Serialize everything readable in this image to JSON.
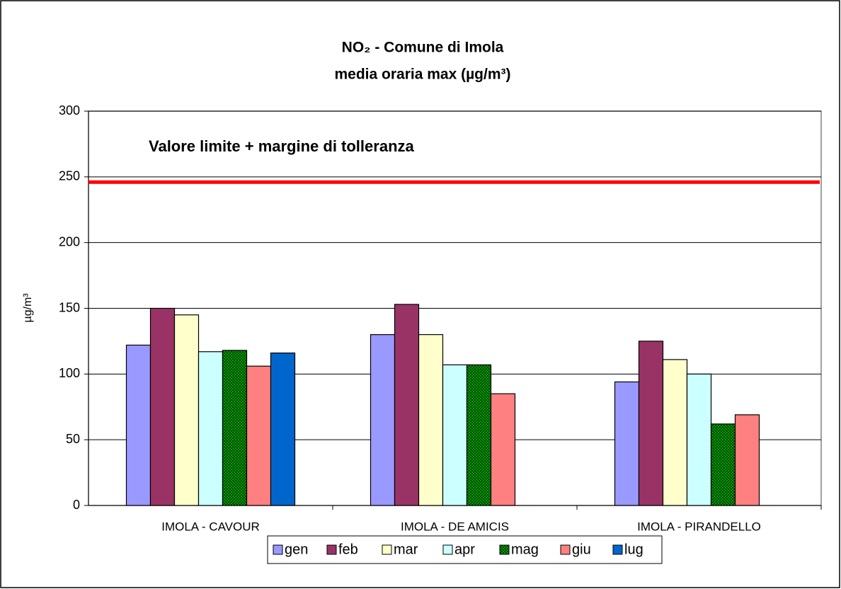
{
  "chart_data": {
    "type": "bar",
    "title": "NO₂ - Comune di Imola",
    "subtitle": "media oraria max  (µg/m³)",
    "y_label": "µg/m³",
    "categories": [
      "IMOLA - CAVOUR",
      "IMOLA - DE AMICIS",
      "IMOLA - PIRANDELLO"
    ],
    "series": [
      {
        "name": "gen",
        "color": "#9999ff",
        "values": [
          122,
          130,
          94
        ]
      },
      {
        "name": "feb",
        "color": "#993366",
        "values": [
          150,
          153,
          125
        ]
      },
      {
        "name": "mar",
        "color": "#ffffcc",
        "values": [
          145,
          130,
          111
        ]
      },
      {
        "name": "apr",
        "color": "#ccffff",
        "values": [
          117,
          107,
          100
        ]
      },
      {
        "name": "mag",
        "color": "#00a000",
        "pattern": true,
        "values": [
          118,
          107,
          62
        ]
      },
      {
        "name": "giu",
        "color": "#ff8080",
        "values": [
          106,
          85,
          69
        ]
      },
      {
        "name": "lug",
        "color": "#0066cc",
        "values": [
          116,
          null,
          null
        ]
      }
    ],
    "reference_line": {
      "label": "Valore limite + margine di tolleranza",
      "value": 246,
      "color": "#ff0000"
    },
    "ylim": [
      0,
      300
    ],
    "yticks": [
      0,
      50,
      100,
      150,
      200,
      250,
      300
    ],
    "grid": true,
    "legend": "bottom"
  }
}
